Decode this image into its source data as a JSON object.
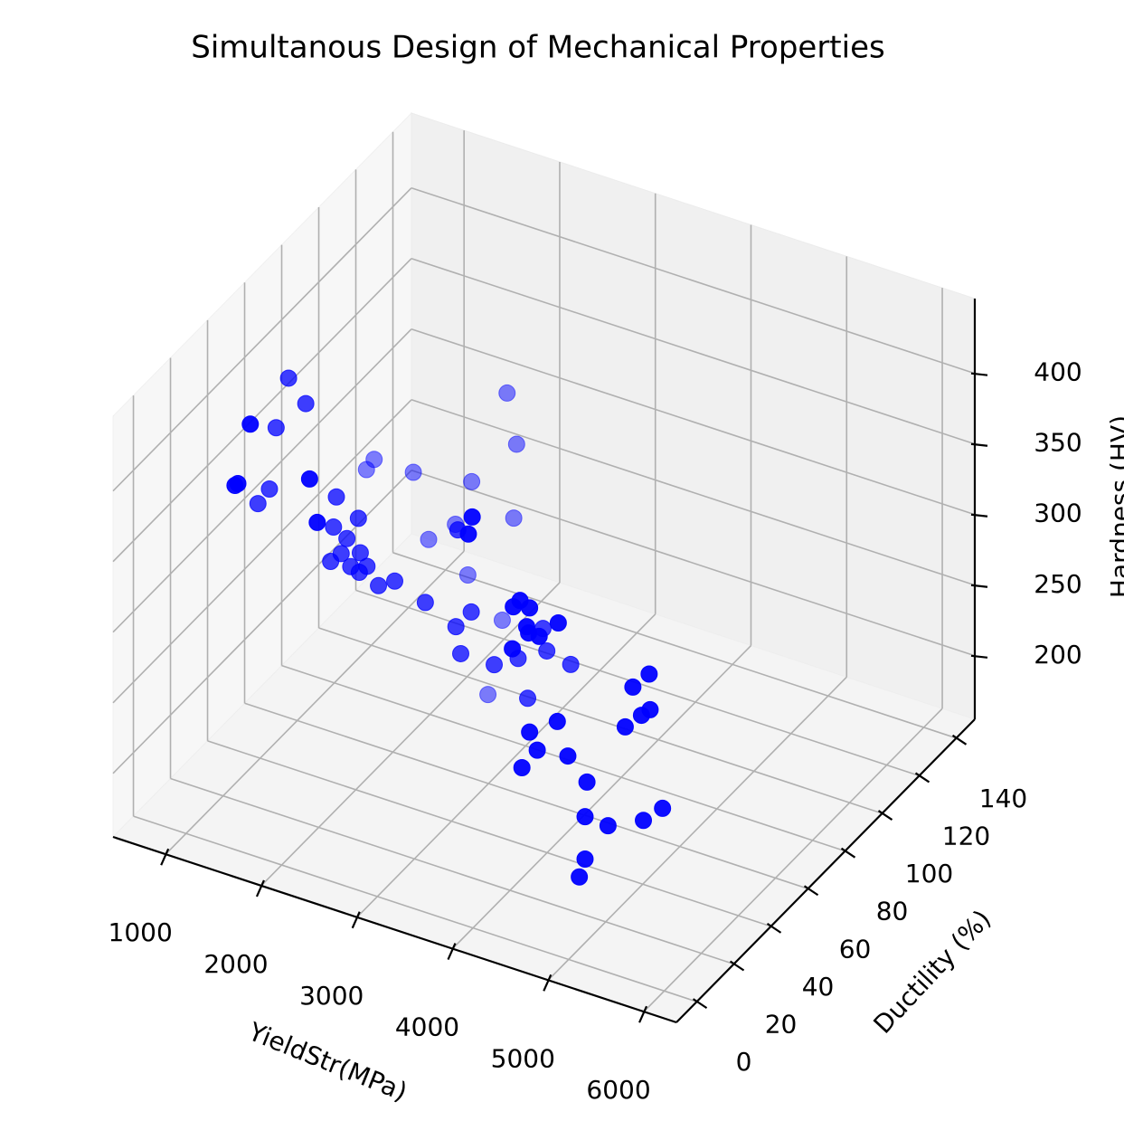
{
  "chart_data": {
    "type": "scatter3d",
    "title": "Simultanous Design of Mechanical Properties",
    "xlabel": "YieldStr(MPa)",
    "ylabel": "Ductility (%)",
    "zlabel": "Hardness (HV)",
    "xlim": [
      450,
      6340
    ],
    "ylim": [
      -11,
      150
    ],
    "zlim": [
      155,
      453
    ],
    "xticks": [
      1000,
      2000,
      3000,
      4000,
      5000,
      6000
    ],
    "yticks": [
      0,
      20,
      40,
      60,
      80,
      100,
      120,
      140
    ],
    "zticks": [
      200,
      250,
      300,
      350,
      400
    ],
    "grid": true,
    "depthshade": true,
    "series": [
      {
        "color": "#0000ff",
        "x": [
          1200,
          1380,
          1420,
          1070,
          1260,
          1290,
          1000,
          880,
          2040,
          1700,
          2120,
          1670,
          1810,
          1930,
          1220,
          1300,
          1710,
          1640,
          1750,
          1950,
          1850,
          1940,
          2020,
          2140,
          2310,
          2630,
          1870,
          2150,
          2970,
          2320,
          3740,
          3700,
          2690,
          2790,
          2760,
          2280,
          3110,
          2950,
          2640,
          4170,
          4240,
          4340,
          4310,
          4330,
          4440,
          3860,
          4640,
          4160,
          3600,
          3900,
          4150,
          3000,
          3350,
          2490,
          3700,
          4630,
          4340,
          4420,
          4740,
          4260,
          4940,
          4920,
          5160,
          5530,
          5730,
          4920,
          4860,
          5420,
          5590,
          5340,
          5510,
          5600
        ],
        "y": [
          45,
          45,
          13,
          45,
          13,
          13,
          45,
          45,
          13,
          45,
          13,
          45,
          45,
          45,
          86,
          86,
          86,
          45,
          45,
          45,
          45,
          45,
          45,
          45,
          45,
          45,
          86,
          86,
          45,
          86,
          13,
          13,
          86,
          86,
          86,
          86,
          45,
          45,
          86,
          13,
          13,
          13,
          13,
          13,
          13,
          45,
          13,
          13,
          45,
          45,
          45,
          45,
          45,
          86,
          45,
          13,
          13,
          13,
          13,
          13,
          13,
          13,
          13,
          13,
          13,
          13,
          13,
          13,
          13,
          13,
          13,
          13
        ],
        "z": [
          422,
          408,
          437,
          384,
          390,
          392,
          339,
          326,
          412,
          349,
          383,
          327,
          322,
          339,
          303,
          312,
          312,
          302,
          310,
          315,
          303,
          301,
          307,
          296,
          303,
          295,
          268,
          285,
          354,
          319,
          423,
          410,
          390,
          356,
          303,
          252,
          299,
          285,
          228,
          369,
          375,
          372,
          358,
          354,
          354,
          304,
          368,
          339,
          277,
          289,
          285,
          267,
          267,
          172,
          251,
          298,
          284,
          273,
          276,
          257,
          262,
          237,
          236,
          248,
          261,
          207,
          193,
          340,
          353,
          310,
          322,
          328
        ]
      }
    ]
  }
}
